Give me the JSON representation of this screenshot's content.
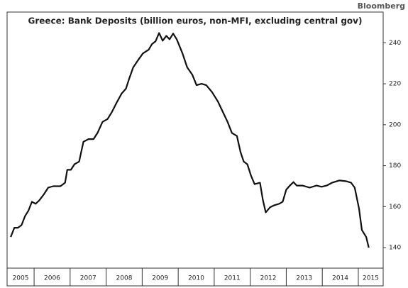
{
  "source": "Bloomberg",
  "chart_data": {
    "type": "line",
    "title": "Greece: Bank Deposits (billion euros, non-MFI, excluding central gov)",
    "x": [
      2005.35,
      2005.45,
      2005.55,
      2005.65,
      2005.75,
      2005.84,
      2005.94,
      2006.04,
      2006.14,
      2006.27,
      2006.39,
      2006.53,
      2006.73,
      2006.86,
      2006.92,
      2007.02,
      2007.12,
      2007.25,
      2007.37,
      2007.51,
      2007.65,
      2007.76,
      2007.9,
      2008.04,
      2008.16,
      2008.29,
      2008.43,
      2008.55,
      2008.63,
      2008.75,
      2008.88,
      2009.02,
      2009.18,
      2009.27,
      2009.37,
      2009.47,
      2009.57,
      2009.67,
      2009.76,
      2009.86,
      2009.96,
      2010.12,
      2010.25,
      2010.39,
      2010.51,
      2010.65,
      2010.78,
      2010.94,
      2011.1,
      2011.24,
      2011.37,
      2011.49,
      2011.63,
      2011.73,
      2011.82,
      2011.92,
      2012.02,
      2012.12,
      2012.27,
      2012.35,
      2012.43,
      2012.55,
      2012.67,
      2012.8,
      2012.9,
      2013.0,
      2013.1,
      2013.2,
      2013.29,
      2013.45,
      2013.65,
      2013.84,
      2013.98,
      2014.12,
      2014.27,
      2014.47,
      2014.67,
      2014.8,
      2014.9,
      2015.02,
      2015.1,
      2015.22,
      2015.29
    ],
    "series": [
      {
        "name": "Bank Deposits",
        "color": "#111111",
        "values": [
          145.2,
          149.7,
          149.7,
          151,
          155.5,
          158,
          162.4,
          161.4,
          163,
          166,
          169.3,
          170,
          170,
          171.7,
          178,
          178,
          180.7,
          182,
          191.7,
          193,
          193,
          196,
          201.4,
          202.8,
          206.2,
          210.7,
          215.2,
          217.6,
          222,
          228,
          231.4,
          234.8,
          236.6,
          239.3,
          240.7,
          244.8,
          241,
          243.4,
          241.7,
          244.5,
          241.7,
          234.8,
          228,
          224.5,
          219.3,
          220,
          219.3,
          215.9,
          211.4,
          206.2,
          201.4,
          196,
          194.5,
          186.6,
          182,
          180.7,
          175.2,
          171,
          171.7,
          163.4,
          157.2,
          159.7,
          160.7,
          161.4,
          162.4,
          168.3,
          170.3,
          172,
          170.3,
          170.3,
          169.3,
          170.3,
          169.7,
          170.3,
          171.7,
          172.8,
          172.4,
          171.7,
          169.3,
          159,
          148.6,
          145.2,
          140
        ]
      }
    ],
    "xlim": [
      2005.25,
      2015.69
    ],
    "xticks": [
      {
        "value": 2005,
        "label": "2005"
      },
      {
        "value": 2006,
        "label": "2006"
      },
      {
        "value": 2007,
        "label": "2007"
      },
      {
        "value": 2008,
        "label": "2008"
      },
      {
        "value": 2009,
        "label": "2009"
      },
      {
        "value": 2010,
        "label": "2010"
      },
      {
        "value": 2011,
        "label": "2011"
      },
      {
        "value": 2012,
        "label": "2012"
      },
      {
        "value": 2013,
        "label": "2013"
      },
      {
        "value": 2014,
        "label": "2014"
      },
      {
        "value": 2015,
        "label": "2015"
      }
    ],
    "ylim": [
      130,
      255
    ],
    "yticks": [
      140,
      160,
      180,
      200,
      220,
      240
    ],
    "y_axis_side": "right"
  }
}
